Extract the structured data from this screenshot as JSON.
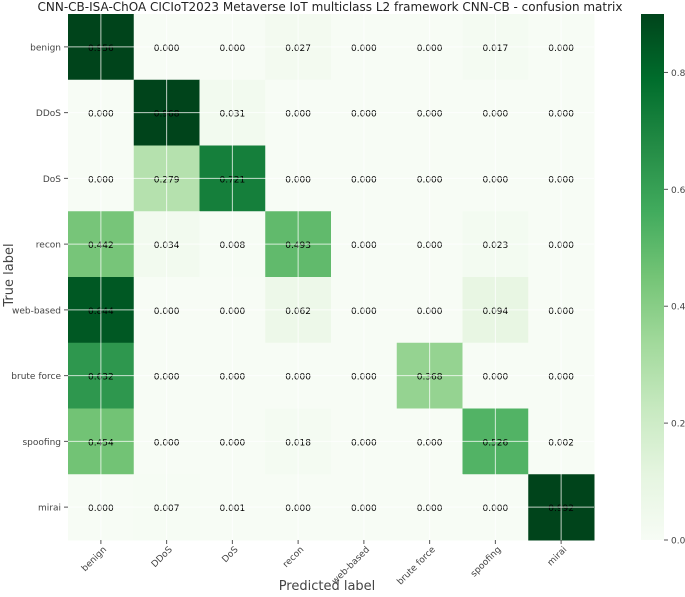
{
  "chart_data": {
    "type": "heatmap",
    "title": "CNN-CB-ISA-ChOA CICIoT2023 Metaverse IoT multiclass L2 framework CNN-CB -  confusion matrix",
    "xlabel": "Predicted label",
    "ylabel": "True label",
    "x_categories": [
      "benign",
      "DDoS",
      "DoS",
      "recon",
      "web-based",
      "brute force",
      "spoofing",
      "mirai"
    ],
    "y_categories": [
      "benign",
      "DDoS",
      "DoS",
      "recon",
      "web-based",
      "brute force",
      "spoofing",
      "mirai"
    ],
    "values": [
      [
        0.956,
        0.0,
        0.0,
        0.027,
        0.0,
        0.0,
        0.017,
        0.0
      ],
      [
        0.0,
        0.968,
        0.031,
        0.0,
        0.0,
        0.0,
        0.0,
        0.0
      ],
      [
        0.0,
        0.279,
        0.721,
        0.0,
        0.0,
        0.0,
        0.0,
        0.0
      ],
      [
        0.442,
        0.034,
        0.008,
        0.493,
        0.0,
        0.0,
        0.023,
        0.0
      ],
      [
        0.844,
        0.0,
        0.0,
        0.062,
        0.0,
        0.0,
        0.094,
        0.0
      ],
      [
        0.632,
        0.0,
        0.0,
        0.0,
        0.0,
        0.368,
        0.0,
        0.0
      ],
      [
        0.454,
        0.0,
        0.0,
        0.018,
        0.0,
        0.0,
        0.526,
        0.002
      ],
      [
        0.0,
        0.007,
        0.001,
        0.0,
        0.0,
        0.0,
        0.0,
        0.992
      ]
    ],
    "colorbar": {
      "range": [
        0.0,
        0.9
      ],
      "ticks": [
        "0.0",
        "0.2",
        "0.4",
        "0.6",
        "0.8"
      ],
      "colormap": "Greens"
    },
    "grid": true
  }
}
